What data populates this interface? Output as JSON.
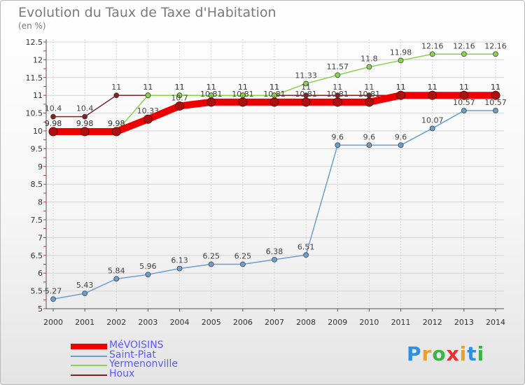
{
  "header": {
    "title": "Evolution du Taux de Taxe d'Habitation",
    "unit": "(en %)"
  },
  "chart_data": {
    "type": "line",
    "x": [
      2000,
      2001,
      2002,
      2003,
      2004,
      2005,
      2006,
      2007,
      2008,
      2009,
      2010,
      2011,
      2012,
      2013,
      2014
    ],
    "ylim": [
      5,
      12.5
    ],
    "yticks": [
      "5",
      "5.5",
      "6",
      "6.5",
      "7",
      "7.5",
      "8",
      "8.5",
      "9",
      "9.5",
      "10",
      "10.5",
      "11",
      "11.5",
      "12",
      "12.5"
    ],
    "series": [
      {
        "name": "Houx",
        "color": "#7a2525",
        "values": [
          10.4,
          10.4,
          11,
          11,
          11,
          11,
          11,
          11,
          11,
          11,
          11,
          11,
          11,
          11,
          11
        ],
        "labels": [
          "10.4",
          "10.4",
          "11",
          "11",
          "11",
          "11",
          "11",
          "11",
          "11",
          "11",
          "11",
          "11",
          "11",
          "11",
          "11"
        ]
      },
      {
        "name": "Yermenonville",
        "color": "#88d44a",
        "values": [
          9.98,
          9.98,
          9.98,
          11,
          11,
          11,
          11,
          11,
          11.33,
          11.57,
          11.8,
          11.98,
          12.16,
          12.16,
          12.16
        ],
        "labels": [
          "9.98",
          "9.98",
          "9.98",
          "11",
          "11",
          "11",
          "11",
          "11",
          "11.33",
          "11.57",
          "11.8",
          "11.98",
          "12.16",
          "12.16",
          "12.16"
        ]
      },
      {
        "name": "Saint-Piat",
        "color": "#6b9fd0",
        "values": [
          5.27,
          5.43,
          5.84,
          5.96,
          6.13,
          6.25,
          6.25,
          6.38,
          6.51,
          9.6,
          9.6,
          9.6,
          10.07,
          10.57,
          10.57
        ],
        "labels": [
          "5.27",
          "5.43",
          "5.84",
          "5.96",
          "6.13",
          "6.25",
          "6.25",
          "6.38",
          "6.51",
          "9.6",
          "9.6",
          "9.6",
          "10.07",
          "10.57",
          "10.57"
        ]
      },
      {
        "name": "MéVOISINS",
        "color": "#ee0000",
        "values": [
          9.98,
          9.98,
          9.98,
          10.33,
          10.7,
          10.81,
          10.81,
          10.81,
          10.81,
          10.81,
          10.81,
          11,
          11,
          11,
          11
        ],
        "labels": [
          "9.98",
          "9.98",
          "9.98",
          "10.33",
          "10.7",
          "10.81",
          "10.81",
          "10.81",
          "10.81",
          "10.81",
          "10.81",
          "11",
          "11",
          "11",
          "11"
        ]
      }
    ],
    "legend": [
      {
        "name": "MéVOISINS",
        "color": "#ee0000",
        "text_color": "#5a5aff"
      },
      {
        "name": "Saint-Piat",
        "color": "#6b9fd0",
        "text_color": "#5a5aff"
      },
      {
        "name": "Yermenonville",
        "color": "#88d44a",
        "text_color": "#5a5aff"
      },
      {
        "name": "Houx",
        "color": "#7a2525",
        "text_color": "#5a5aff"
      }
    ],
    "legend_position": "bottom-left"
  },
  "logo": {
    "letters": [
      "P",
      "r",
      "o",
      "x",
      "i",
      "t",
      "i"
    ],
    "colors": [
      "#2f8fe0",
      "#f0a020",
      "#3bb54a",
      "#e83030",
      "#f0a020",
      "#2f8fe0",
      "#3bb54a"
    ]
  }
}
